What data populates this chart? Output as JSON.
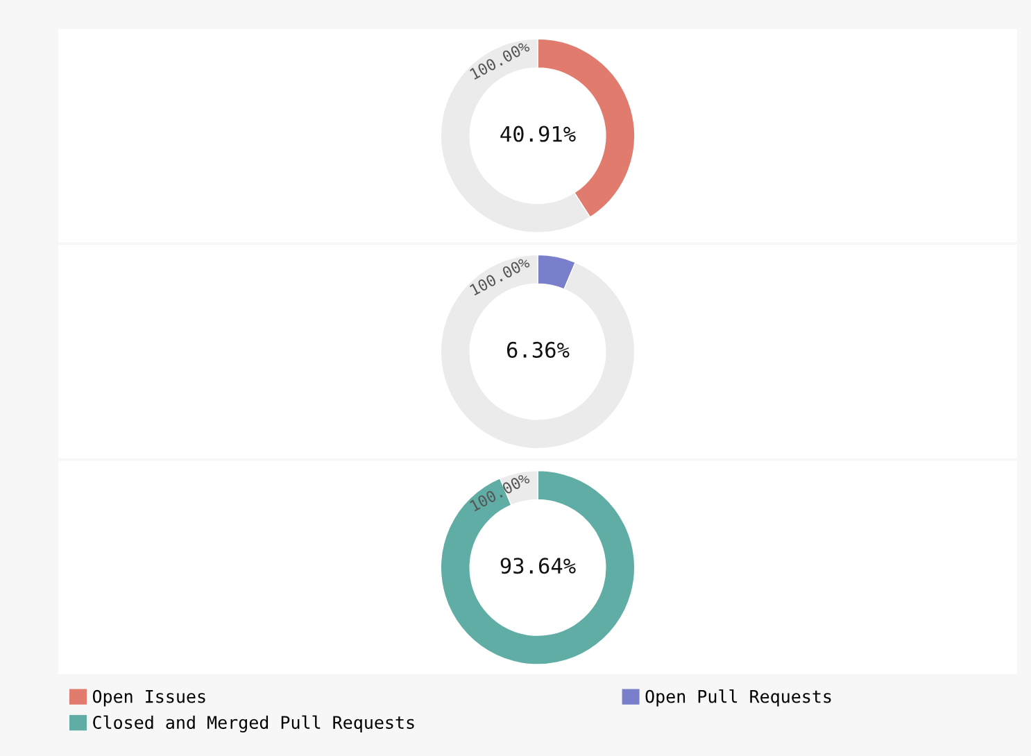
{
  "chart_data": [
    {
      "type": "donut",
      "categories": [
        "Open Issues",
        null
      ],
      "values": [
        40.91,
        59.09
      ],
      "colors": [
        "#e07b6e",
        "#ebebeb"
      ],
      "value_labels": [
        "40.91%",
        null
      ],
      "annotations": [
        "100.00%"
      ],
      "legend": "bottom"
    },
    {
      "type": "donut",
      "categories": [
        "Open Pull Requests",
        null
      ],
      "values": [
        6.36,
        93.64
      ],
      "colors": [
        "#7a7fcb",
        "#ebebeb"
      ],
      "value_labels": [
        "6.36%",
        null
      ],
      "annotations": [
        "100.00%"
      ],
      "legend": "bottom"
    },
    {
      "type": "donut",
      "categories": [
        "Closed and Merged Pull Requests",
        null
      ],
      "values": [
        93.64,
        6.36
      ],
      "colors": [
        "#5fada5",
        "#ebebeb"
      ],
      "value_labels": [
        "93.64%",
        null
      ],
      "annotations": [
        "100.00%"
      ],
      "legend": "bottom"
    }
  ]
}
